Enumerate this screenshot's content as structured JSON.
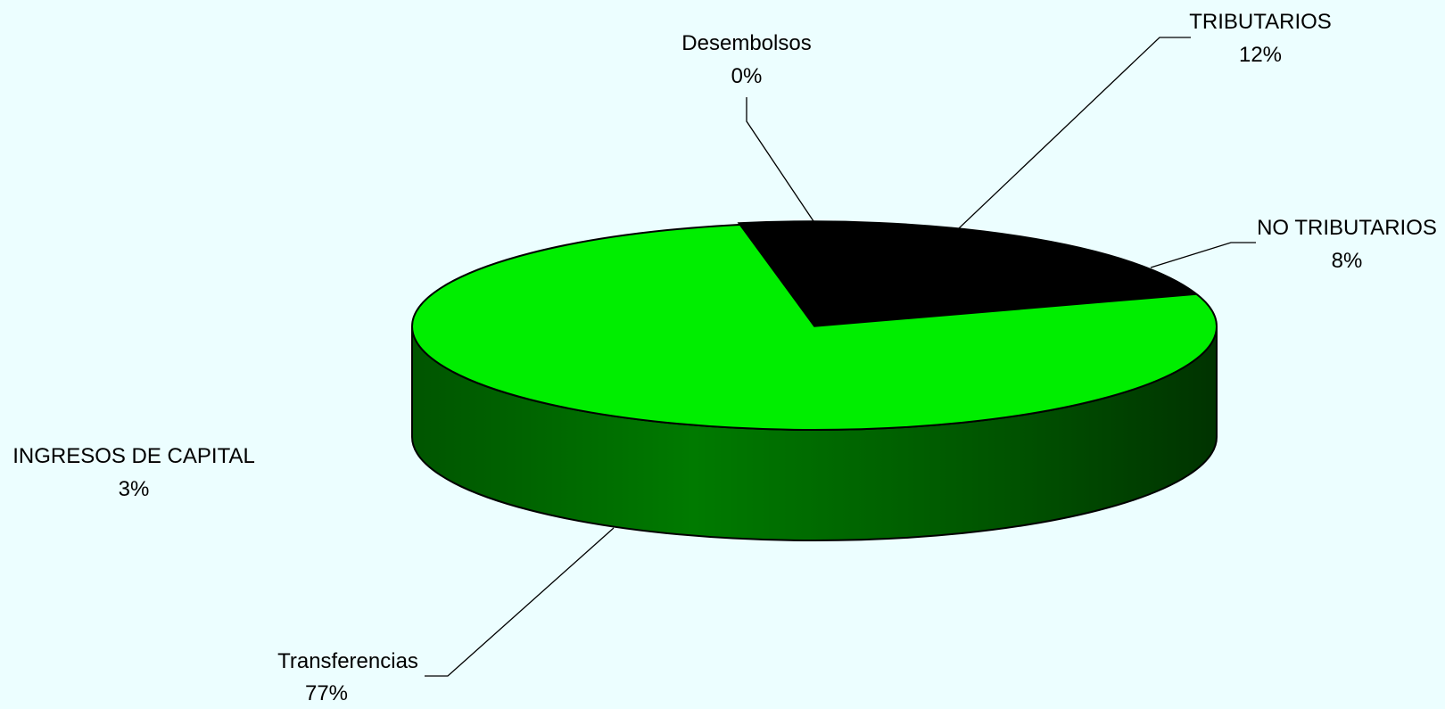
{
  "chart_data": {
    "type": "pie",
    "style": "3d",
    "title": "",
    "slices": [
      {
        "label": "TRIBUTARIOS",
        "percent_label": "12%",
        "value": 12,
        "color": "#000000"
      },
      {
        "label": "NO TRIBUTARIOS",
        "percent_label": "8%",
        "value": 8,
        "color": "#00ee00"
      },
      {
        "label": "Transferencias",
        "percent_label": "77%",
        "value": 77,
        "color": "#00ee00"
      },
      {
        "label": "INGRESOS DE CAPITAL",
        "percent_label": "3%",
        "value": 3,
        "color": "#00ee00"
      },
      {
        "label": "Desembolsos",
        "percent_label": "0%",
        "value": 0,
        "color": "#00ee00"
      }
    ],
    "colors": {
      "background": "#ecfeff",
      "pie_green": "#00ee00",
      "pie_black": "#000000",
      "side_dark": "#003300"
    }
  }
}
